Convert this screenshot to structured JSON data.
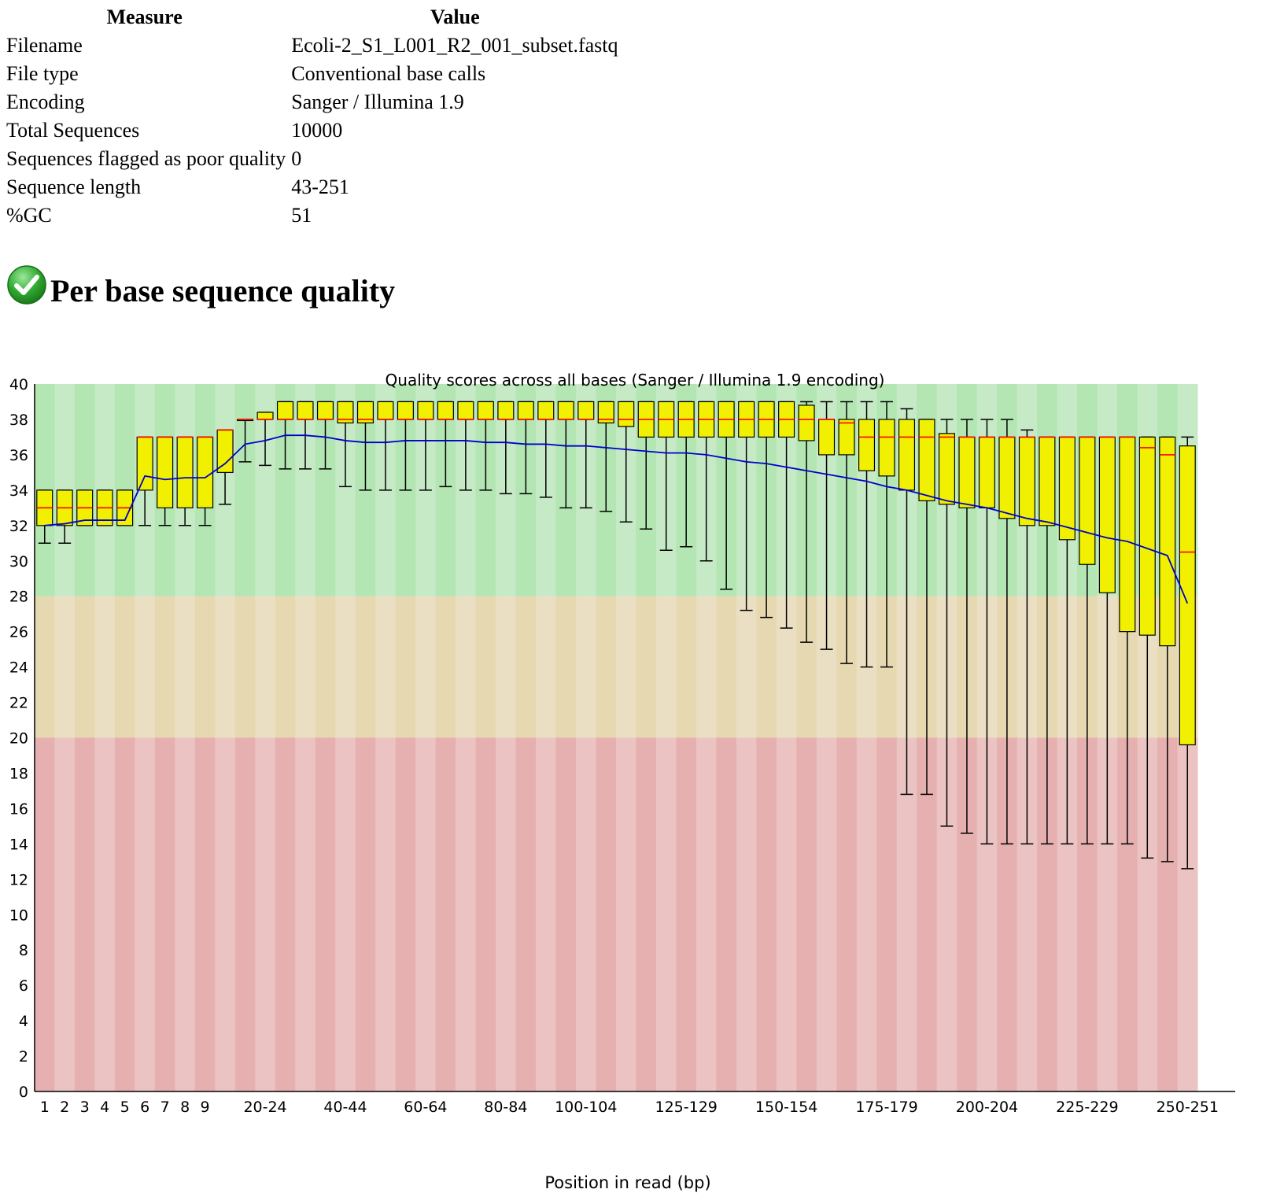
{
  "stats": {
    "headers": [
      "Measure",
      "Value"
    ],
    "rows": [
      [
        "Filename",
        "Ecoli-2_S1_L001_R2_001_subset.fastq"
      ],
      [
        "File type",
        "Conventional base calls"
      ],
      [
        "Encoding",
        "Sanger / Illumina 1.9"
      ],
      [
        "Total Sequences",
        "10000"
      ],
      [
        "Sequences flagged as poor quality",
        "0"
      ],
      [
        "Sequence length",
        "43-251"
      ],
      [
        "%GC",
        "51"
      ]
    ]
  },
  "section": {
    "status_icon": "check-circle-icon",
    "status_color": "#2ea82e",
    "title": "Per base sequence quality"
  },
  "chart_data": {
    "type": "box",
    "title": "Quality scores across all bases (Sanger / Illumina 1.9 encoding)",
    "xlabel": "Position in read (bp)",
    "ylabel": "",
    "ylim": [
      0,
      40
    ],
    "yticks": [
      0,
      2,
      4,
      6,
      8,
      10,
      12,
      14,
      16,
      18,
      20,
      22,
      24,
      26,
      28,
      30,
      32,
      34,
      36,
      38,
      40
    ],
    "zones": [
      {
        "from": 28,
        "to": 40,
        "colors": [
          "#b3e6b3",
          "#c6e9c6"
        ]
      },
      {
        "from": 20,
        "to": 28,
        "colors": [
          "#e6d8b0",
          "#ebdfc3"
        ]
      },
      {
        "from": 0,
        "to": 20,
        "colors": [
          "#e6b0b0",
          "#ebc3c3"
        ]
      }
    ],
    "colors": {
      "box": "#f0f000",
      "median": "#ff0000",
      "mean": "#0000cc",
      "whisker": "#000000"
    },
    "categories": [
      "1",
      "2",
      "3",
      "4",
      "5",
      "6",
      "7",
      "8",
      "9",
      "10-14",
      "15-19",
      "20-24",
      "25-29",
      "30-34",
      "35-39",
      "40-44",
      "45-49",
      "50-54",
      "55-59",
      "60-64",
      "65-69",
      "70-74",
      "75-79",
      "80-84",
      "85-89",
      "90-94",
      "95-99",
      "100-104",
      "105-109",
      "110-114",
      "115-119",
      "120-124",
      "125-129",
      "130-134",
      "135-139",
      "140-144",
      "145-149",
      "150-154",
      "155-159",
      "160-164",
      "165-169",
      "170-174",
      "175-179",
      "180-184",
      "185-189",
      "190-194",
      "195-199",
      "200-204",
      "205-209",
      "210-214",
      "215-219",
      "220-224",
      "225-229",
      "230-234",
      "235-239",
      "240-244",
      "245-249",
      "250-251"
    ],
    "tick_labels": [
      "1",
      "2",
      "3",
      "4",
      "5",
      "6",
      "7",
      "8",
      "9",
      "20-24",
      "40-44",
      "60-64",
      "80-84",
      "100-104",
      "125-129",
      "150-154",
      "175-179",
      "200-204",
      "225-229",
      "250-251"
    ],
    "boxes": [
      {
        "low": 31,
        "q1": 32,
        "median": 33,
        "q3": 34,
        "high": 34
      },
      {
        "low": 31,
        "q1": 32,
        "median": 33,
        "q3": 34,
        "high": 34
      },
      {
        "low": 32,
        "q1": 32,
        "median": 33,
        "q3": 34,
        "high": 34
      },
      {
        "low": 32,
        "q1": 32,
        "median": 33,
        "q3": 34,
        "high": 34
      },
      {
        "low": 32,
        "q1": 32,
        "median": 33,
        "q3": 34,
        "high": 34
      },
      {
        "low": 32,
        "q1": 34,
        "median": 37,
        "q3": 37,
        "high": 37
      },
      {
        "low": 32,
        "q1": 33,
        "median": 37,
        "q3": 37,
        "high": 37
      },
      {
        "low": 32,
        "q1": 33,
        "median": 37,
        "q3": 37,
        "high": 37
      },
      {
        "low": 32,
        "q1": 33,
        "median": 37,
        "q3": 37,
        "high": 37
      },
      {
        "low": 33.2,
        "q1": 35,
        "median": 37.4,
        "q3": 37.4,
        "high": 37.4
      },
      {
        "low": 35.6,
        "q1": 38,
        "median": 38,
        "q3": 38,
        "high": 38
      },
      {
        "low": 35.4,
        "q1": 38,
        "median": 38,
        "q3": 38.4,
        "high": 38.4
      },
      {
        "low": 35.2,
        "q1": 38,
        "median": 38,
        "q3": 39,
        "high": 39
      },
      {
        "low": 35.2,
        "q1": 38,
        "median": 38,
        "q3": 39,
        "high": 39
      },
      {
        "low": 35.2,
        "q1": 38,
        "median": 38,
        "q3": 39,
        "high": 39
      },
      {
        "low": 34.2,
        "q1": 37.8,
        "median": 38,
        "q3": 39,
        "high": 39
      },
      {
        "low": 34,
        "q1": 37.8,
        "median": 38,
        "q3": 39,
        "high": 39
      },
      {
        "low": 34,
        "q1": 38,
        "median": 38,
        "q3": 39,
        "high": 39
      },
      {
        "low": 34,
        "q1": 38,
        "median": 38,
        "q3": 39,
        "high": 39
      },
      {
        "low": 34,
        "q1": 38,
        "median": 38,
        "q3": 39,
        "high": 39
      },
      {
        "low": 34.2,
        "q1": 38,
        "median": 38,
        "q3": 39,
        "high": 39
      },
      {
        "low": 34,
        "q1": 38,
        "median": 38,
        "q3": 39,
        "high": 39
      },
      {
        "low": 34,
        "q1": 38,
        "median": 38,
        "q3": 39,
        "high": 39
      },
      {
        "low": 33.8,
        "q1": 38,
        "median": 38,
        "q3": 39,
        "high": 39
      },
      {
        "low": 33.8,
        "q1": 38,
        "median": 38,
        "q3": 39,
        "high": 39
      },
      {
        "low": 33.6,
        "q1": 38,
        "median": 38,
        "q3": 39,
        "high": 39
      },
      {
        "low": 33,
        "q1": 38,
        "median": 38,
        "q3": 39,
        "high": 39
      },
      {
        "low": 33,
        "q1": 38,
        "median": 38,
        "q3": 39,
        "high": 39
      },
      {
        "low": 32.8,
        "q1": 37.8,
        "median": 38,
        "q3": 39,
        "high": 39
      },
      {
        "low": 32.2,
        "q1": 37.6,
        "median": 38,
        "q3": 39,
        "high": 39
      },
      {
        "low": 31.8,
        "q1": 37,
        "median": 38,
        "q3": 39,
        "high": 39
      },
      {
        "low": 30.6,
        "q1": 37,
        "median": 38,
        "q3": 39,
        "high": 39
      },
      {
        "low": 30.8,
        "q1": 37,
        "median": 38,
        "q3": 39,
        "high": 39
      },
      {
        "low": 30,
        "q1": 37,
        "median": 38,
        "q3": 39,
        "high": 39
      },
      {
        "low": 28.4,
        "q1": 37,
        "median": 38,
        "q3": 39,
        "high": 39
      },
      {
        "low": 27.2,
        "q1": 37,
        "median": 38,
        "q3": 39,
        "high": 39
      },
      {
        "low": 26.8,
        "q1": 37,
        "median": 38,
        "q3": 39,
        "high": 39
      },
      {
        "low": 26.2,
        "q1": 37,
        "median": 38,
        "q3": 39,
        "high": 39
      },
      {
        "low": 25.4,
        "q1": 36.8,
        "median": 38,
        "q3": 38.8,
        "high": 39
      },
      {
        "low": 25,
        "q1": 36,
        "median": 38,
        "q3": 38,
        "high": 39
      },
      {
        "low": 24.2,
        "q1": 36,
        "median": 37.8,
        "q3": 38,
        "high": 39
      },
      {
        "low": 24,
        "q1": 35.1,
        "median": 37,
        "q3": 38,
        "high": 39
      },
      {
        "low": 24,
        "q1": 34.8,
        "median": 37,
        "q3": 38,
        "high": 39
      },
      {
        "low": 16.8,
        "q1": 34,
        "median": 37,
        "q3": 38,
        "high": 38.6
      },
      {
        "low": 16.8,
        "q1": 33.4,
        "median": 37,
        "q3": 38,
        "high": 38
      },
      {
        "low": 15,
        "q1": 33.2,
        "median": 37,
        "q3": 37.2,
        "high": 38
      },
      {
        "low": 14.6,
        "q1": 33,
        "median": 37,
        "q3": 37,
        "high": 38
      },
      {
        "low": 14,
        "q1": 33,
        "median": 37,
        "q3": 37,
        "high": 38
      },
      {
        "low": 14,
        "q1": 32.4,
        "median": 37,
        "q3": 37,
        "high": 38
      },
      {
        "low": 14,
        "q1": 32,
        "median": 37,
        "q3": 37,
        "high": 37.4
      },
      {
        "low": 14,
        "q1": 32,
        "median": 37,
        "q3": 37,
        "high": 37
      },
      {
        "low": 14,
        "q1": 31.2,
        "median": 37,
        "q3": 37,
        "high": 37
      },
      {
        "low": 14,
        "q1": 29.8,
        "median": 37,
        "q3": 37,
        "high": 37
      },
      {
        "low": 14,
        "q1": 28.2,
        "median": 37,
        "q3": 37,
        "high": 37
      },
      {
        "low": 14,
        "q1": 26,
        "median": 37,
        "q3": 37,
        "high": 37
      },
      {
        "low": 13.2,
        "q1": 25.8,
        "median": 36.4,
        "q3": 37,
        "high": 37
      },
      {
        "low": 13,
        "q1": 25.2,
        "median": 36,
        "q3": 37,
        "high": 37
      },
      {
        "low": 12.6,
        "q1": 19.6,
        "median": 30.5,
        "q3": 36.5,
        "high": 37
      }
    ],
    "mean": [
      32.0,
      32.1,
      32.3,
      32.3,
      32.3,
      34.8,
      34.6,
      34.7,
      34.7,
      35.5,
      36.6,
      36.8,
      37.1,
      37.1,
      37.0,
      36.8,
      36.7,
      36.7,
      36.8,
      36.8,
      36.8,
      36.8,
      36.7,
      36.7,
      36.6,
      36.6,
      36.5,
      36.5,
      36.4,
      36.3,
      36.2,
      36.1,
      36.1,
      36.0,
      35.8,
      35.6,
      35.5,
      35.3,
      35.1,
      34.9,
      34.7,
      34.5,
      34.2,
      34.0,
      33.7,
      33.4,
      33.2,
      33.0,
      32.7,
      32.4,
      32.2,
      31.9,
      31.6,
      31.3,
      31.1,
      30.7,
      30.3,
      27.6
    ]
  }
}
